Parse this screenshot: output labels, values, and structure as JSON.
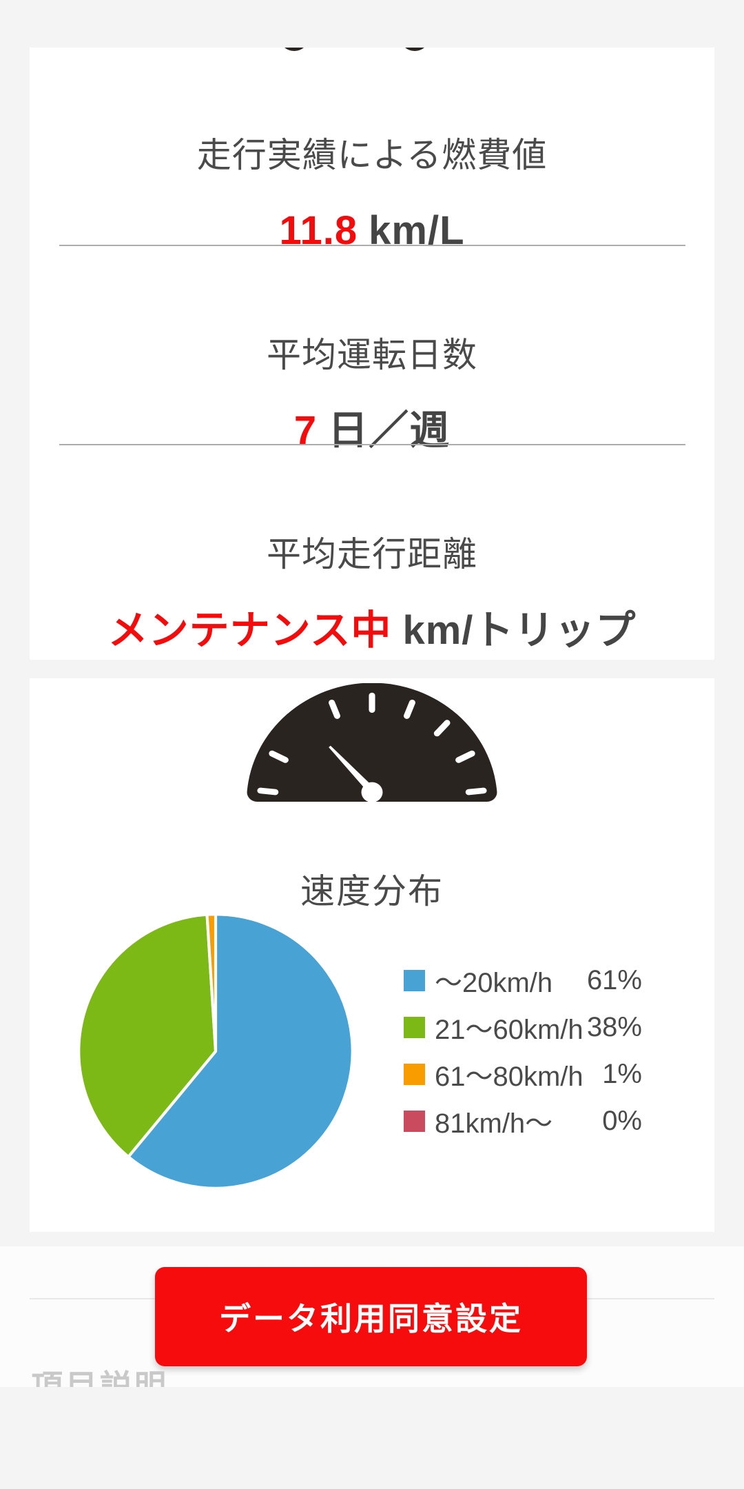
{
  "stats_card": {
    "items": [
      {
        "label": "走行実績による燃費値",
        "value": "11.8",
        "unit": "km/L"
      },
      {
        "label": "平均運転日数",
        "value": "7",
        "unit": "日／週"
      },
      {
        "label": "平均走行距離",
        "value": "メンテナンス中",
        "unit": "km/トリップ"
      }
    ]
  },
  "speed_card": {
    "title": "速度分布",
    "icon": "speedometer-icon"
  },
  "chart_data": {
    "type": "pie",
    "title": "速度分布",
    "labels": [
      "～20km/h",
      "21～60km/h",
      "61～80km/h",
      "81km/h～"
    ],
    "values": [
      61,
      38,
      1,
      0
    ],
    "unit": "%",
    "colors": [
      "#48a2d3",
      "#7cb916",
      "#f99c00",
      "#ca4a5e"
    ],
    "legend_position": "right",
    "rotation": "clockwise-from-top",
    "slice_gap_color": "#ffffff"
  },
  "legend": [
    {
      "label": "～20km/h",
      "percent": "61%"
    },
    {
      "label": "21～60km/h",
      "percent": "38%"
    },
    {
      "label": "61～80km/h",
      "percent": "1%"
    },
    {
      "label": "81km/h～",
      "percent": "0%"
    }
  ],
  "consent_button": {
    "label": "データ利用同意設定"
  },
  "footer": {
    "next_section_heading": "項目説明"
  },
  "colors": {
    "accent_red": "#f40b0b",
    "button_red": "#f60c0c",
    "text_dark": "#4a4a4a",
    "unit_gray": "#454545",
    "muted_heading": "#c9c9c9",
    "page_background": "#f4f4f5",
    "card_background": "#ffffff",
    "gauge_dark": "#2a2421"
  }
}
